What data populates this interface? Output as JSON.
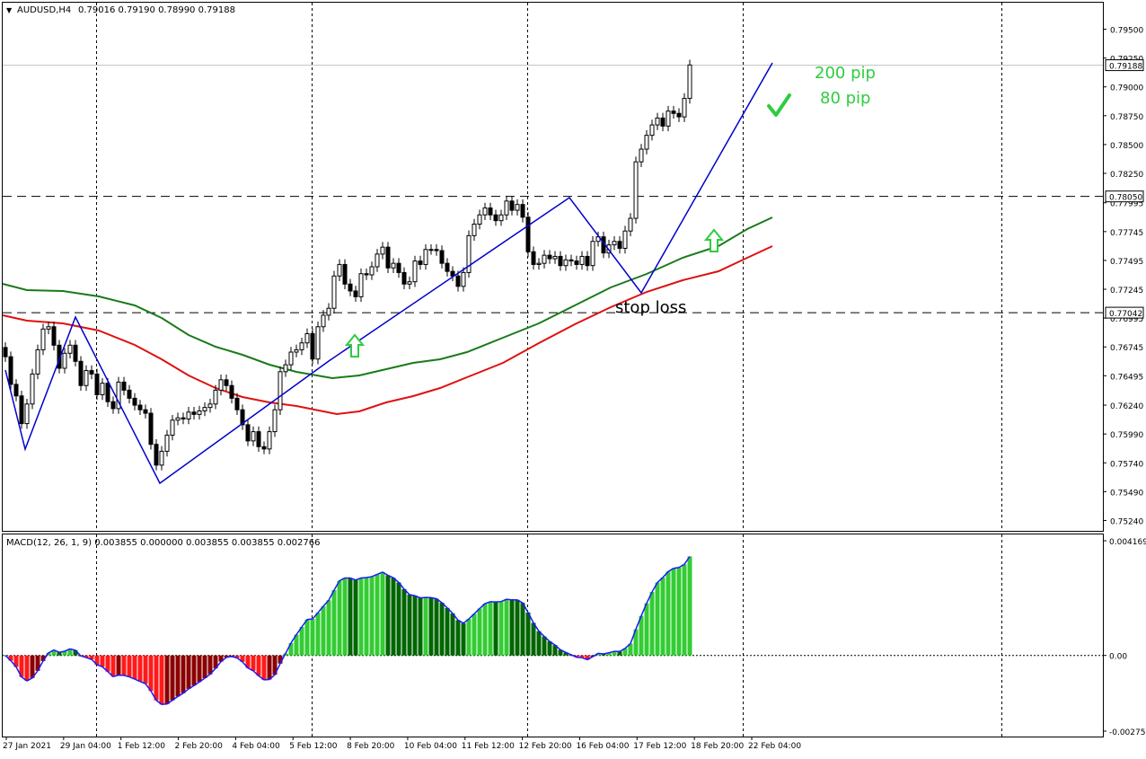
{
  "header": {
    "collapse_glyph": "▼",
    "symbol_tf": "AUDUSD,H4",
    "ohlc": "0.79016 0.79190 0.78990 0.79188"
  },
  "macd_panel": {
    "label": "MACD(12, 26, 1, 9) 0.003855 0.000000 0.003855 0.003855 0.002766"
  },
  "annotations": {
    "target_pips": "200 pip",
    "stop_pips": "80 pip",
    "stop_loss": "stop loss"
  },
  "colors": {
    "bull_candle": "#ffffff",
    "bear_candle": "#000000",
    "zigzag": "#0000cc",
    "ma_fast": "#1a7a1a",
    "ma_slow": "#e01010",
    "macd_pos_light": "#33cc33",
    "macd_pos_dark": "#006600",
    "macd_neg_light": "#ff1a1a",
    "macd_neg_dark": "#8b0000",
    "arrow_signal": "#2ecc40",
    "text_annotation": "#2ecc40"
  },
  "chart_data": [
    {
      "type": "candlestick",
      "title": "AUDUSD,H4",
      "ylim": [
        0.7515,
        0.7973
      ],
      "y_ticks": [
        "0.79500",
        "0.79250",
        "0.79000",
        "0.78750",
        "0.78500",
        "0.78250",
        "0.77995",
        "0.77745",
        "0.77495",
        "0.77245",
        "0.76995",
        "0.76745",
        "0.76495",
        "0.76240",
        "0.75990",
        "0.75740",
        "0.75490",
        "0.75240"
      ],
      "x_ticks": [
        "27 Jan 2021",
        "29 Jan 04:00",
        "1 Feb 12:00",
        "2 Feb 20:00",
        "4 Feb 04:00",
        "5 Feb 12:00",
        "8 Feb 20:00",
        "10 Feb 04:00",
        "11 Feb 12:00",
        "12 Feb 20:00",
        "16 Feb 04:00",
        "17 Feb 12:00",
        "18 Feb 20:00",
        "22 Feb 04:00"
      ],
      "current_price": "0.79188",
      "levels": [
        {
          "label": "0.78050",
          "value": 0.7805
        },
        {
          "label": "0.77042",
          "value": 0.77042
        }
      ],
      "close": [
        0.7666,
        0.7642,
        0.7632,
        0.7608,
        0.7625,
        0.7651,
        0.7672,
        0.769,
        0.7692,
        0.7676,
        0.7656,
        0.7669,
        0.7676,
        0.7662,
        0.7641,
        0.7654,
        0.7651,
        0.7633,
        0.7643,
        0.7627,
        0.7621,
        0.7644,
        0.7637,
        0.763,
        0.7624,
        0.762,
        0.7617,
        0.759,
        0.7572,
        0.7584,
        0.7598,
        0.7611,
        0.7613,
        0.7612,
        0.7618,
        0.7616,
        0.7619,
        0.7622,
        0.7625,
        0.7637,
        0.7646,
        0.7641,
        0.763,
        0.762,
        0.7607,
        0.7593,
        0.7601,
        0.7588,
        0.7586,
        0.7601,
        0.762,
        0.7653,
        0.7659,
        0.767,
        0.7672,
        0.7678,
        0.7686,
        0.7664,
        0.7692,
        0.7702,
        0.7708,
        0.7736,
        0.7746,
        0.7729,
        0.7723,
        0.7718,
        0.7738,
        0.7737,
        0.7744,
        0.7755,
        0.7761,
        0.7743,
        0.7747,
        0.7739,
        0.7729,
        0.7731,
        0.7749,
        0.7746,
        0.7759,
        0.7759,
        0.7758,
        0.7747,
        0.774,
        0.7736,
        0.7727,
        0.7739,
        0.7771,
        0.7781,
        0.7789,
        0.7795,
        0.7789,
        0.7784,
        0.7789,
        0.7801,
        0.7793,
        0.7798,
        0.7787,
        0.7757,
        0.7746,
        0.7747,
        0.7754,
        0.7751,
        0.7753,
        0.7745,
        0.775,
        0.7749,
        0.7746,
        0.7753,
        0.7745,
        0.7766,
        0.777,
        0.7756,
        0.7763,
        0.7766,
        0.776,
        0.7775,
        0.7786,
        0.7835,
        0.7846,
        0.7858,
        0.7867,
        0.7873,
        0.7866,
        0.7879,
        0.7877,
        0.7874,
        0.789,
        0.7919
      ],
      "macd_histogram": {
        "ylim": [
          -0.002752,
          0.004169
        ],
        "y_ticks": [
          "0.004169",
          "0.00",
          "-0.002752"
        ]
      }
    }
  ]
}
